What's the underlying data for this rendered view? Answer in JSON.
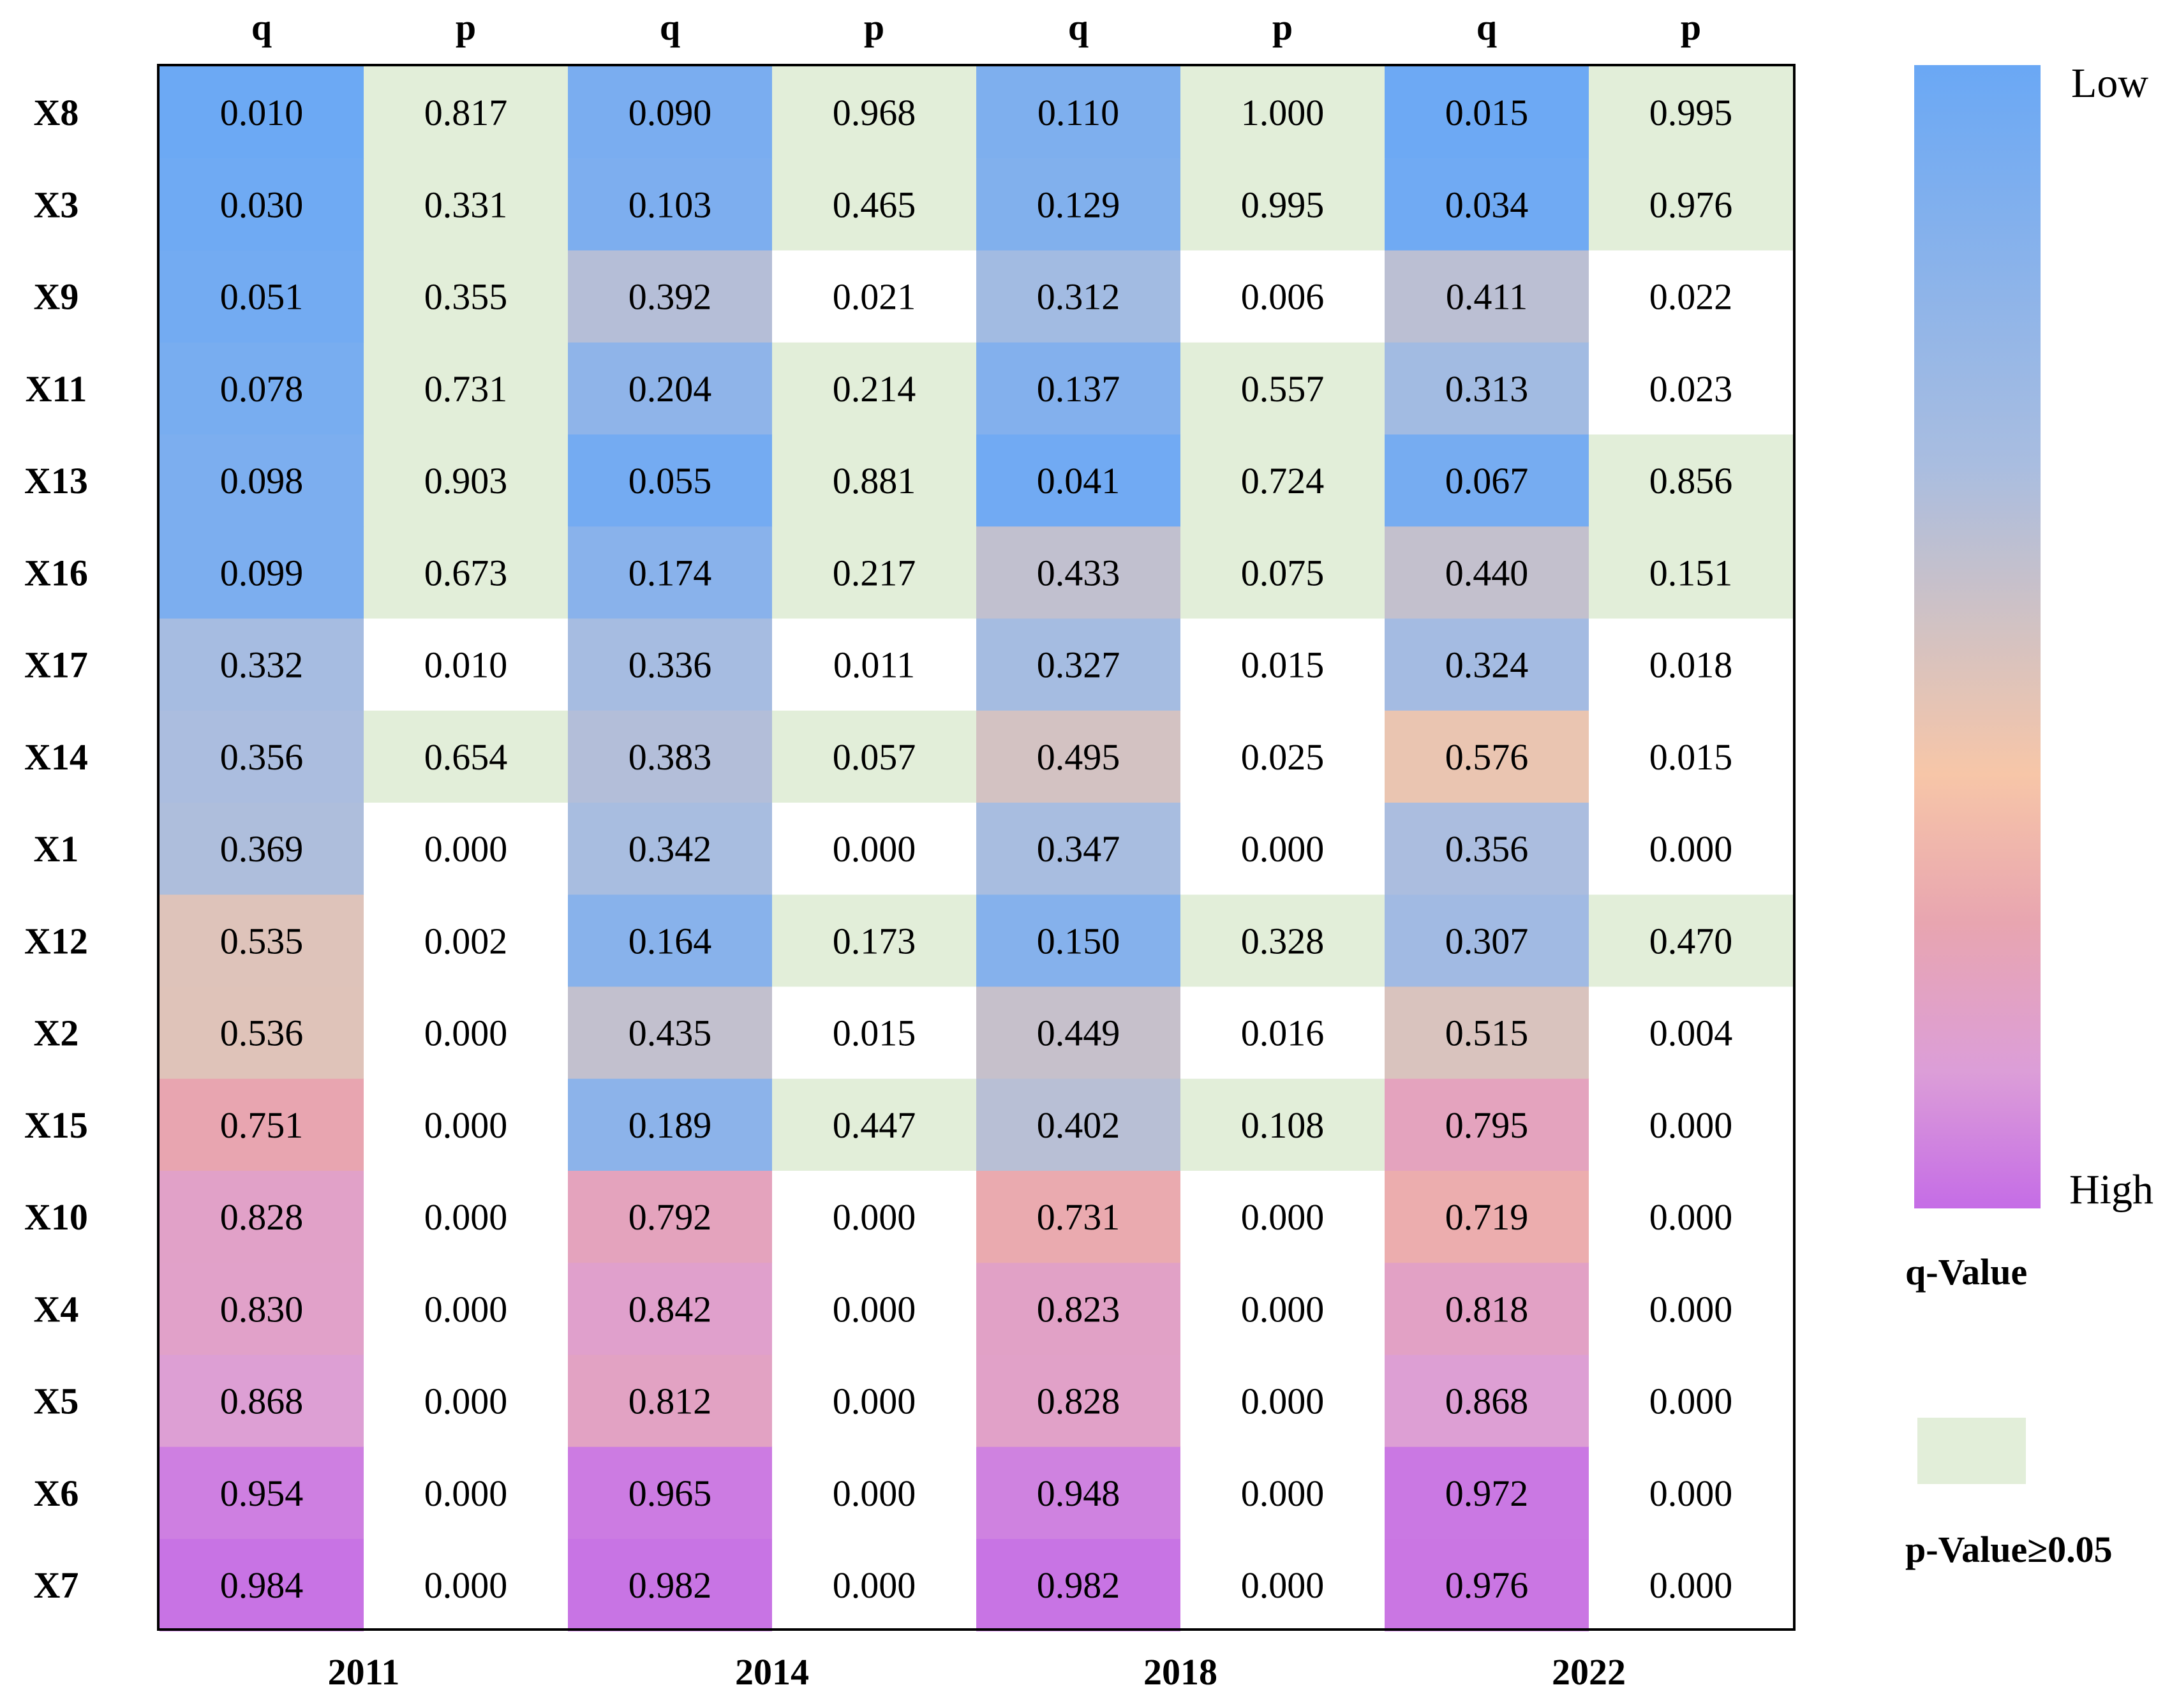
{
  "chart_data": {
    "type": "heatmap",
    "years": [
      "2011",
      "2014",
      "2018",
      "2022"
    ],
    "column_headers": [
      "q",
      "p",
      "q",
      "p",
      "q",
      "p",
      "q",
      "p"
    ],
    "rows": [
      "X8",
      "X3",
      "X9",
      "X11",
      "X13",
      "X16",
      "X17",
      "X14",
      "X1",
      "X12",
      "X2",
      "X15",
      "X10",
      "X4",
      "X5",
      "X6",
      "X7"
    ],
    "values": [
      [
        "0.010",
        "0.817",
        "0.090",
        "0.968",
        "0.110",
        "1.000",
        "0.015",
        "0.995"
      ],
      [
        "0.030",
        "0.331",
        "0.103",
        "0.465",
        "0.129",
        "0.995",
        "0.034",
        "0.976"
      ],
      [
        "0.051",
        "0.355",
        "0.392",
        "0.021",
        "0.312",
        "0.006",
        "0.411",
        "0.022"
      ],
      [
        "0.078",
        "0.731",
        "0.204",
        "0.214",
        "0.137",
        "0.557",
        "0.313",
        "0.023"
      ],
      [
        "0.098",
        "0.903",
        "0.055",
        "0.881",
        "0.041",
        "0.724",
        "0.067",
        "0.856"
      ],
      [
        "0.099",
        "0.673",
        "0.174",
        "0.217",
        "0.433",
        "0.075",
        "0.440",
        "0.151"
      ],
      [
        "0.332",
        "0.010",
        "0.336",
        "0.011",
        "0.327",
        "0.015",
        "0.324",
        "0.018"
      ],
      [
        "0.356",
        "0.654",
        "0.383",
        "0.057",
        "0.495",
        "0.025",
        "0.576",
        "0.015"
      ],
      [
        "0.369",
        "0.000",
        "0.342",
        "0.000",
        "0.347",
        "0.000",
        "0.356",
        "0.000"
      ],
      [
        "0.535",
        "0.002",
        "0.164",
        "0.173",
        "0.150",
        "0.328",
        "0.307",
        "0.470"
      ],
      [
        "0.536",
        "0.000",
        "0.435",
        "0.015",
        "0.449",
        "0.016",
        "0.515",
        "0.004"
      ],
      [
        "0.751",
        "0.000",
        "0.189",
        "0.447",
        "0.402",
        "0.108",
        "0.795",
        "0.000"
      ],
      [
        "0.828",
        "0.000",
        "0.792",
        "0.000",
        "0.731",
        "0.000",
        "0.719",
        "0.000"
      ],
      [
        "0.830",
        "0.000",
        "0.842",
        "0.000",
        "0.823",
        "0.000",
        "0.818",
        "0.000"
      ],
      [
        "0.868",
        "0.000",
        "0.812",
        "0.000",
        "0.828",
        "0.000",
        "0.868",
        "0.000"
      ],
      [
        "0.954",
        "0.000",
        "0.965",
        "0.000",
        "0.948",
        "0.000",
        "0.972",
        "0.000"
      ],
      [
        "0.984",
        "0.000",
        "0.982",
        "0.000",
        "0.982",
        "0.000",
        "0.976",
        "0.000"
      ]
    ],
    "p_threshold": 0.05,
    "colorscale": {
      "low_label": "Low",
      "high_label": "High",
      "title": "q-Value",
      "stops": [
        "#6aa8f5",
        "#a9bde0",
        "#f7c6a8",
        "#e8a5b0",
        "#dc9ed8",
        "#c56ce6"
      ]
    },
    "p_legend": {
      "label": "p-Value≥0.05",
      "color": "#e2eed9"
    }
  }
}
